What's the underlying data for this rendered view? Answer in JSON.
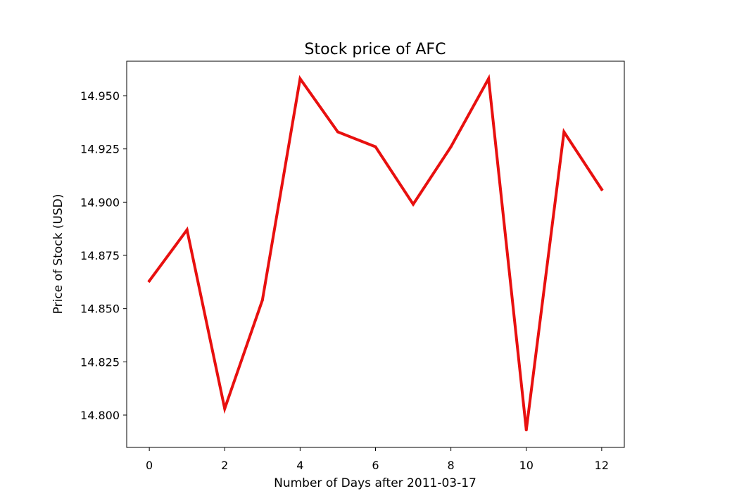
{
  "chart_data": {
    "type": "line",
    "title": "Stock price of AFC",
    "xlabel": "Number of Days after 2011-03-17",
    "ylabel": "Price of Stock (USD)",
    "x": [
      0,
      1,
      2,
      3,
      4,
      5,
      6,
      7,
      8,
      9,
      10,
      11,
      12
    ],
    "series": [
      {
        "values": [
          14.863,
          14.887,
          14.803,
          14.854,
          14.958,
          14.933,
          14.926,
          14.899,
          14.926,
          14.958,
          14.793,
          14.933,
          14.906
        ],
        "color": "#e8100f"
      }
    ],
    "xlim": [
      -0.6,
      12.6
    ],
    "ylim": [
      14.7848,
      14.9662
    ],
    "xticks": [
      0,
      2,
      4,
      6,
      8,
      10,
      12
    ],
    "xtick_labels": [
      "0",
      "2",
      "4",
      "6",
      "8",
      "10",
      "12"
    ],
    "yticks": [
      14.8,
      14.825,
      14.85,
      14.875,
      14.9,
      14.925,
      14.95
    ],
    "ytick_labels": [
      "14.800",
      "14.825",
      "14.850",
      "14.875",
      "14.900",
      "14.925",
      "14.950"
    ],
    "grid": false,
    "legend": "none"
  }
}
